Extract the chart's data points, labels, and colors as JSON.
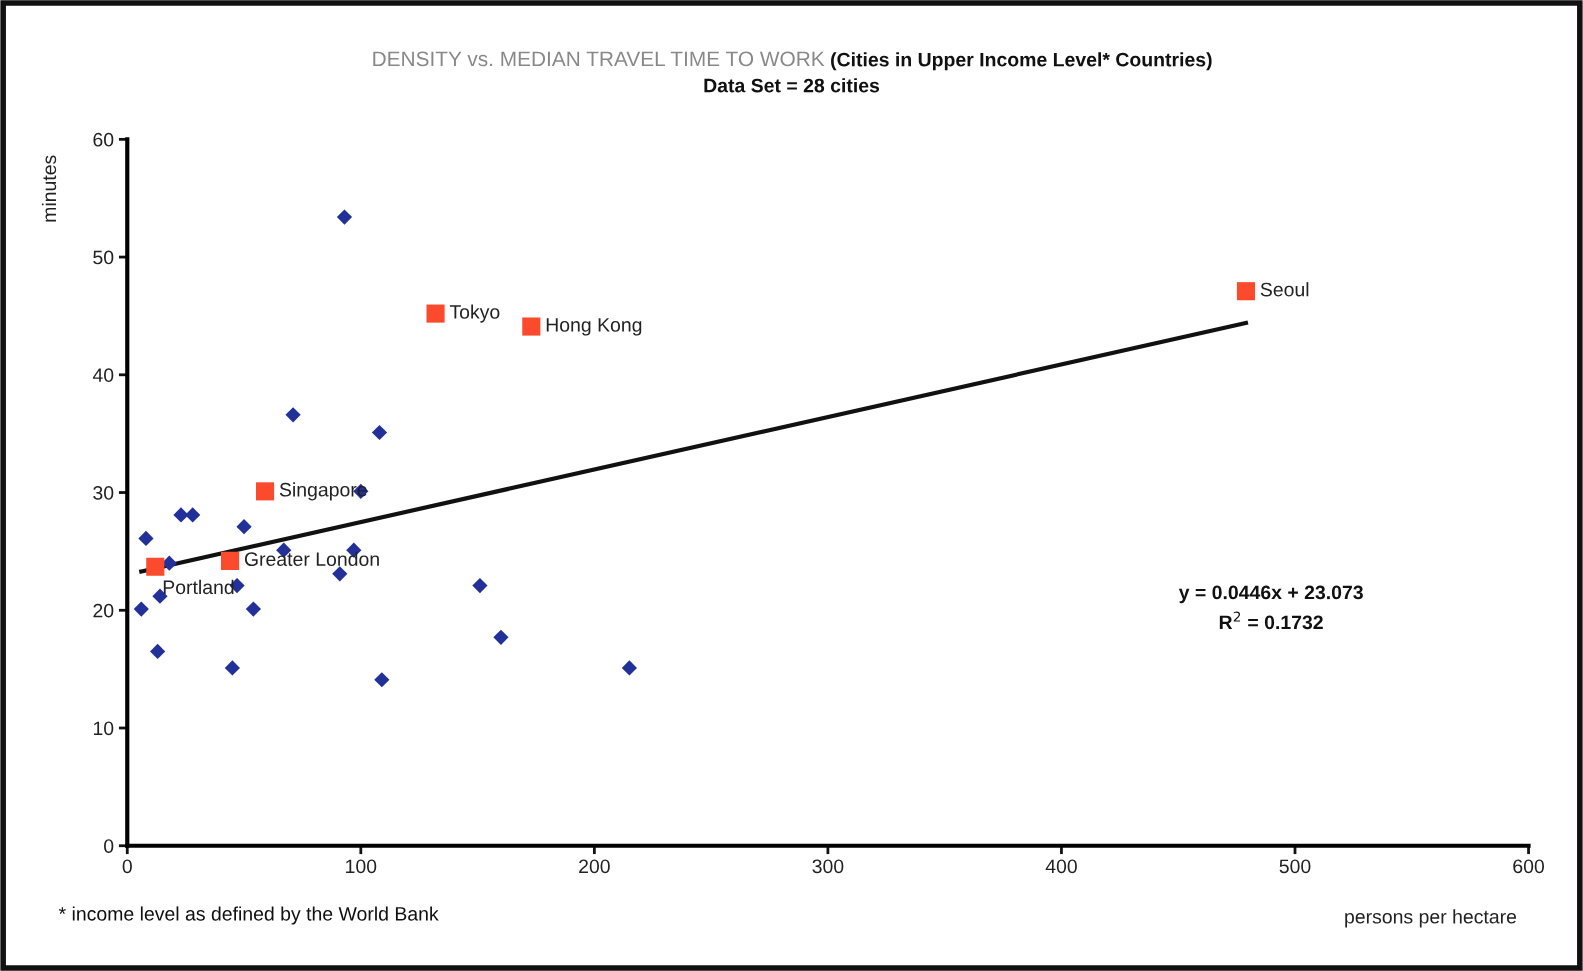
{
  "chart_data": {
    "type": "scatter",
    "title": "DENSITY vs. MEDIAN TRAVEL TIME TO WORK",
    "subtitle": "(Cities in Upper Income Level* Countries)",
    "xlabel": "persons per hectare",
    "ylabel": "minutes",
    "xlim": [
      0,
      600
    ],
    "xticks": [
      0,
      100,
      200,
      300,
      400,
      500,
      600
    ],
    "ylim": [
      0,
      60
    ],
    "yticks": [
      0,
      10,
      20,
      30,
      40,
      50,
      60
    ],
    "grid": false,
    "legend": false,
    "series": [
      {
        "color": "#22309a",
        "marker": "diamond",
        "x": [
          6,
          8,
          18,
          14,
          13,
          23,
          28,
          50,
          47,
          45,
          54,
          67,
          71,
          93,
          91,
          97,
          100,
          108,
          109,
          151,
          160,
          215
        ],
        "values": [
          20.1,
          26.1,
          24,
          21.2,
          16.5,
          28.1,
          28.1,
          27.1,
          22.1,
          15.1,
          20.1,
          25.1,
          36.6,
          53.4,
          23.1,
          25.1,
          30.1,
          35.1,
          14.1,
          22.1,
          17.7,
          15.1
        ]
      },
      {
        "type": "scatter",
        "color": "#fb4a2c",
        "marker": "square",
        "x": [
          12,
          44,
          59,
          132,
          173,
          479
        ],
        "values": [
          23.7,
          24.2,
          30.1,
          45.2,
          44.1,
          47.1
        ]
      },
      {
        "type": "line",
        "color": "#111111",
        "marker": "none",
        "line_style": "solid",
        "x": [
          6,
          479
        ],
        "values": [
          23.3,
          44.4
        ]
      }
    ],
    "annotations": [
      {
        "text": "Portland",
        "x": 12,
        "y": 23.7
      },
      {
        "text": "Greater London",
        "x": 44,
        "y": 24.2
      },
      {
        "text": "Singapore",
        "x": 59,
        "y": 30.1
      },
      {
        "text": "Tokyo",
        "x": 132,
        "y": 45.2
      },
      {
        "text": "Hong Kong",
        "x": 173,
        "y": 44.1
      },
      {
        "text": "Seoul",
        "x": 479,
        "y": 47.1
      },
      "Data Set = 28 cities",
      "y = 0.0446x + 23.073",
      "R$^{2}$ = 0.1732",
      "* income level as defined by the World Bank"
    ]
  }
}
